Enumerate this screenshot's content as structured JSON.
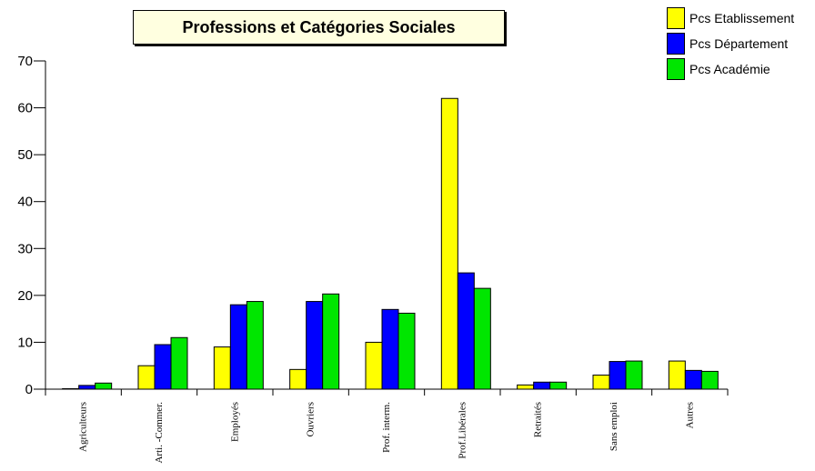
{
  "chart_data": {
    "type": "bar",
    "title": "Professions et Catégories Sociales",
    "categories": [
      "Agriculteurs",
      "Arti. -Commer.",
      "Employés",
      "Ouvriers",
      "Prof. interm.",
      "Prof.Libérales",
      "Retraités",
      "Sans emploi",
      "Autres"
    ],
    "series": [
      {
        "name": "Pcs Etablissement",
        "color": "#ffff00",
        "values": [
          0.1,
          5,
          9,
          4.2,
          10,
          62,
          0.9,
          3,
          6
        ]
      },
      {
        "name": "Pcs Département",
        "color": "#0000ff",
        "values": [
          0.8,
          9.5,
          18,
          18.7,
          17,
          24.8,
          1.5,
          5.9,
          4
        ]
      },
      {
        "name": "Pcs Académie",
        "color": "#00e600",
        "values": [
          1.3,
          11,
          18.7,
          20.3,
          16.2,
          21.5,
          1.5,
          6,
          3.8
        ]
      }
    ],
    "ylim": [
      0,
      70
    ],
    "yticks": [
      "0",
      "10",
      "20",
      "30",
      "40",
      "50",
      "60",
      "70"
    ],
    "grid": false,
    "legend_position": "top-right"
  }
}
